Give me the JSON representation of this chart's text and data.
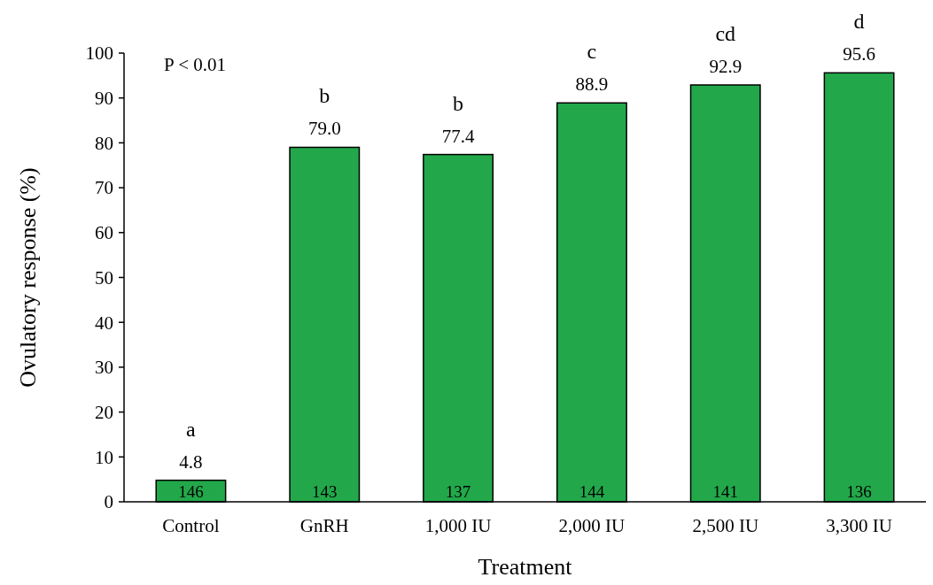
{
  "chart_data": {
    "type": "bar",
    "xlabel": "Treatment",
    "ylabel": "Ovulatory response (%)",
    "categories": [
      "Control",
      "GnRH",
      "1,000 IU",
      "2,000 IU",
      "2,500 IU",
      "3,300 IU"
    ],
    "values": [
      4.8,
      79.0,
      77.4,
      88.9,
      92.9,
      95.6
    ],
    "value_labels": [
      "4.8",
      "79.0",
      "77.4",
      "88.9",
      "92.9",
      "95.6"
    ],
    "color": "#22a84a",
    "ylim": [
      0,
      100
    ],
    "yticks": [
      0,
      10,
      20,
      30,
      40,
      50,
      60,
      70,
      80,
      90,
      100
    ],
    "grid": false,
    "annotations": [
      "P < 0.01",
      {
        "text": "a",
        "x": "Control",
        "y": 4.8
      },
      {
        "text": "b",
        "x": "GnRH",
        "y": 79.0
      },
      {
        "text": "b",
        "x": "1,000 IU",
        "y": 77.4
      },
      {
        "text": "c",
        "x": "2,000 IU",
        "y": 88.9
      },
      {
        "text": "cd",
        "x": "2,500 IU",
        "y": 92.9
      },
      {
        "text": "d",
        "x": "3,300 IU",
        "y": 95.6
      },
      {
        "text": "146",
        "x": "Control",
        "y": 0
      },
      {
        "text": "143",
        "x": "GnRH",
        "y": 0
      },
      {
        "text": "137",
        "x": "1,000 IU",
        "y": 0
      },
      {
        "text": "144",
        "x": "2,000 IU",
        "y": 0
      },
      {
        "text": "141",
        "x": "2,500 IU",
        "y": 0
      },
      {
        "text": "136",
        "x": "3,300 IU",
        "y": 0
      }
    ]
  }
}
